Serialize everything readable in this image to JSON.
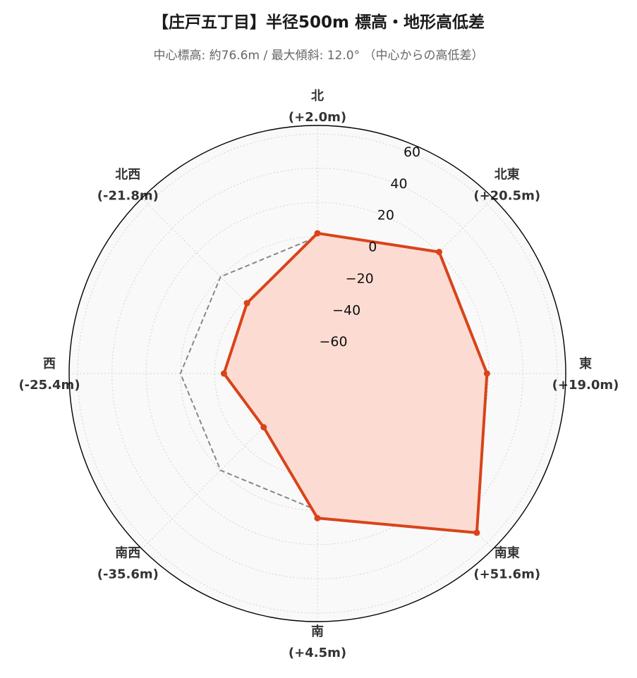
{
  "title": "【庄戸五丁目】半径500m 標高・地形高低差",
  "subtitle": "中心標高: 約76.6m / 最大傾斜: 12.0° （中心からの高低差）",
  "chart_data": {
    "type": "radar",
    "r_range": [
      -80,
      65
    ],
    "r_ticks": [
      -60,
      -40,
      -20,
      0,
      20,
      40,
      60
    ],
    "grid": true,
    "directions": [
      {
        "name": "北",
        "label": "(+2.0m)",
        "value": 2.0
      },
      {
        "name": "北東",
        "label": "(+20.5m)",
        "value": 20.5
      },
      {
        "name": "東",
        "label": "(+19.0m)",
        "value": 19.0
      },
      {
        "name": "南東",
        "label": "(+51.6m)",
        "value": 51.6
      },
      {
        "name": "南",
        "label": "(+4.5m)",
        "value": 4.5
      },
      {
        "name": "南西",
        "label": "(-35.6m)",
        "value": -35.6
      },
      {
        "name": "西",
        "label": "(-25.4m)",
        "value": -25.4
      },
      {
        "name": "北西",
        "label": "(-21.8m)",
        "value": -21.8
      }
    ],
    "reference_value": 0,
    "colors": {
      "series": "#d9431a",
      "fill": "#fcdcd2",
      "reference": "#888888",
      "background": "#f9f9f9"
    }
  }
}
